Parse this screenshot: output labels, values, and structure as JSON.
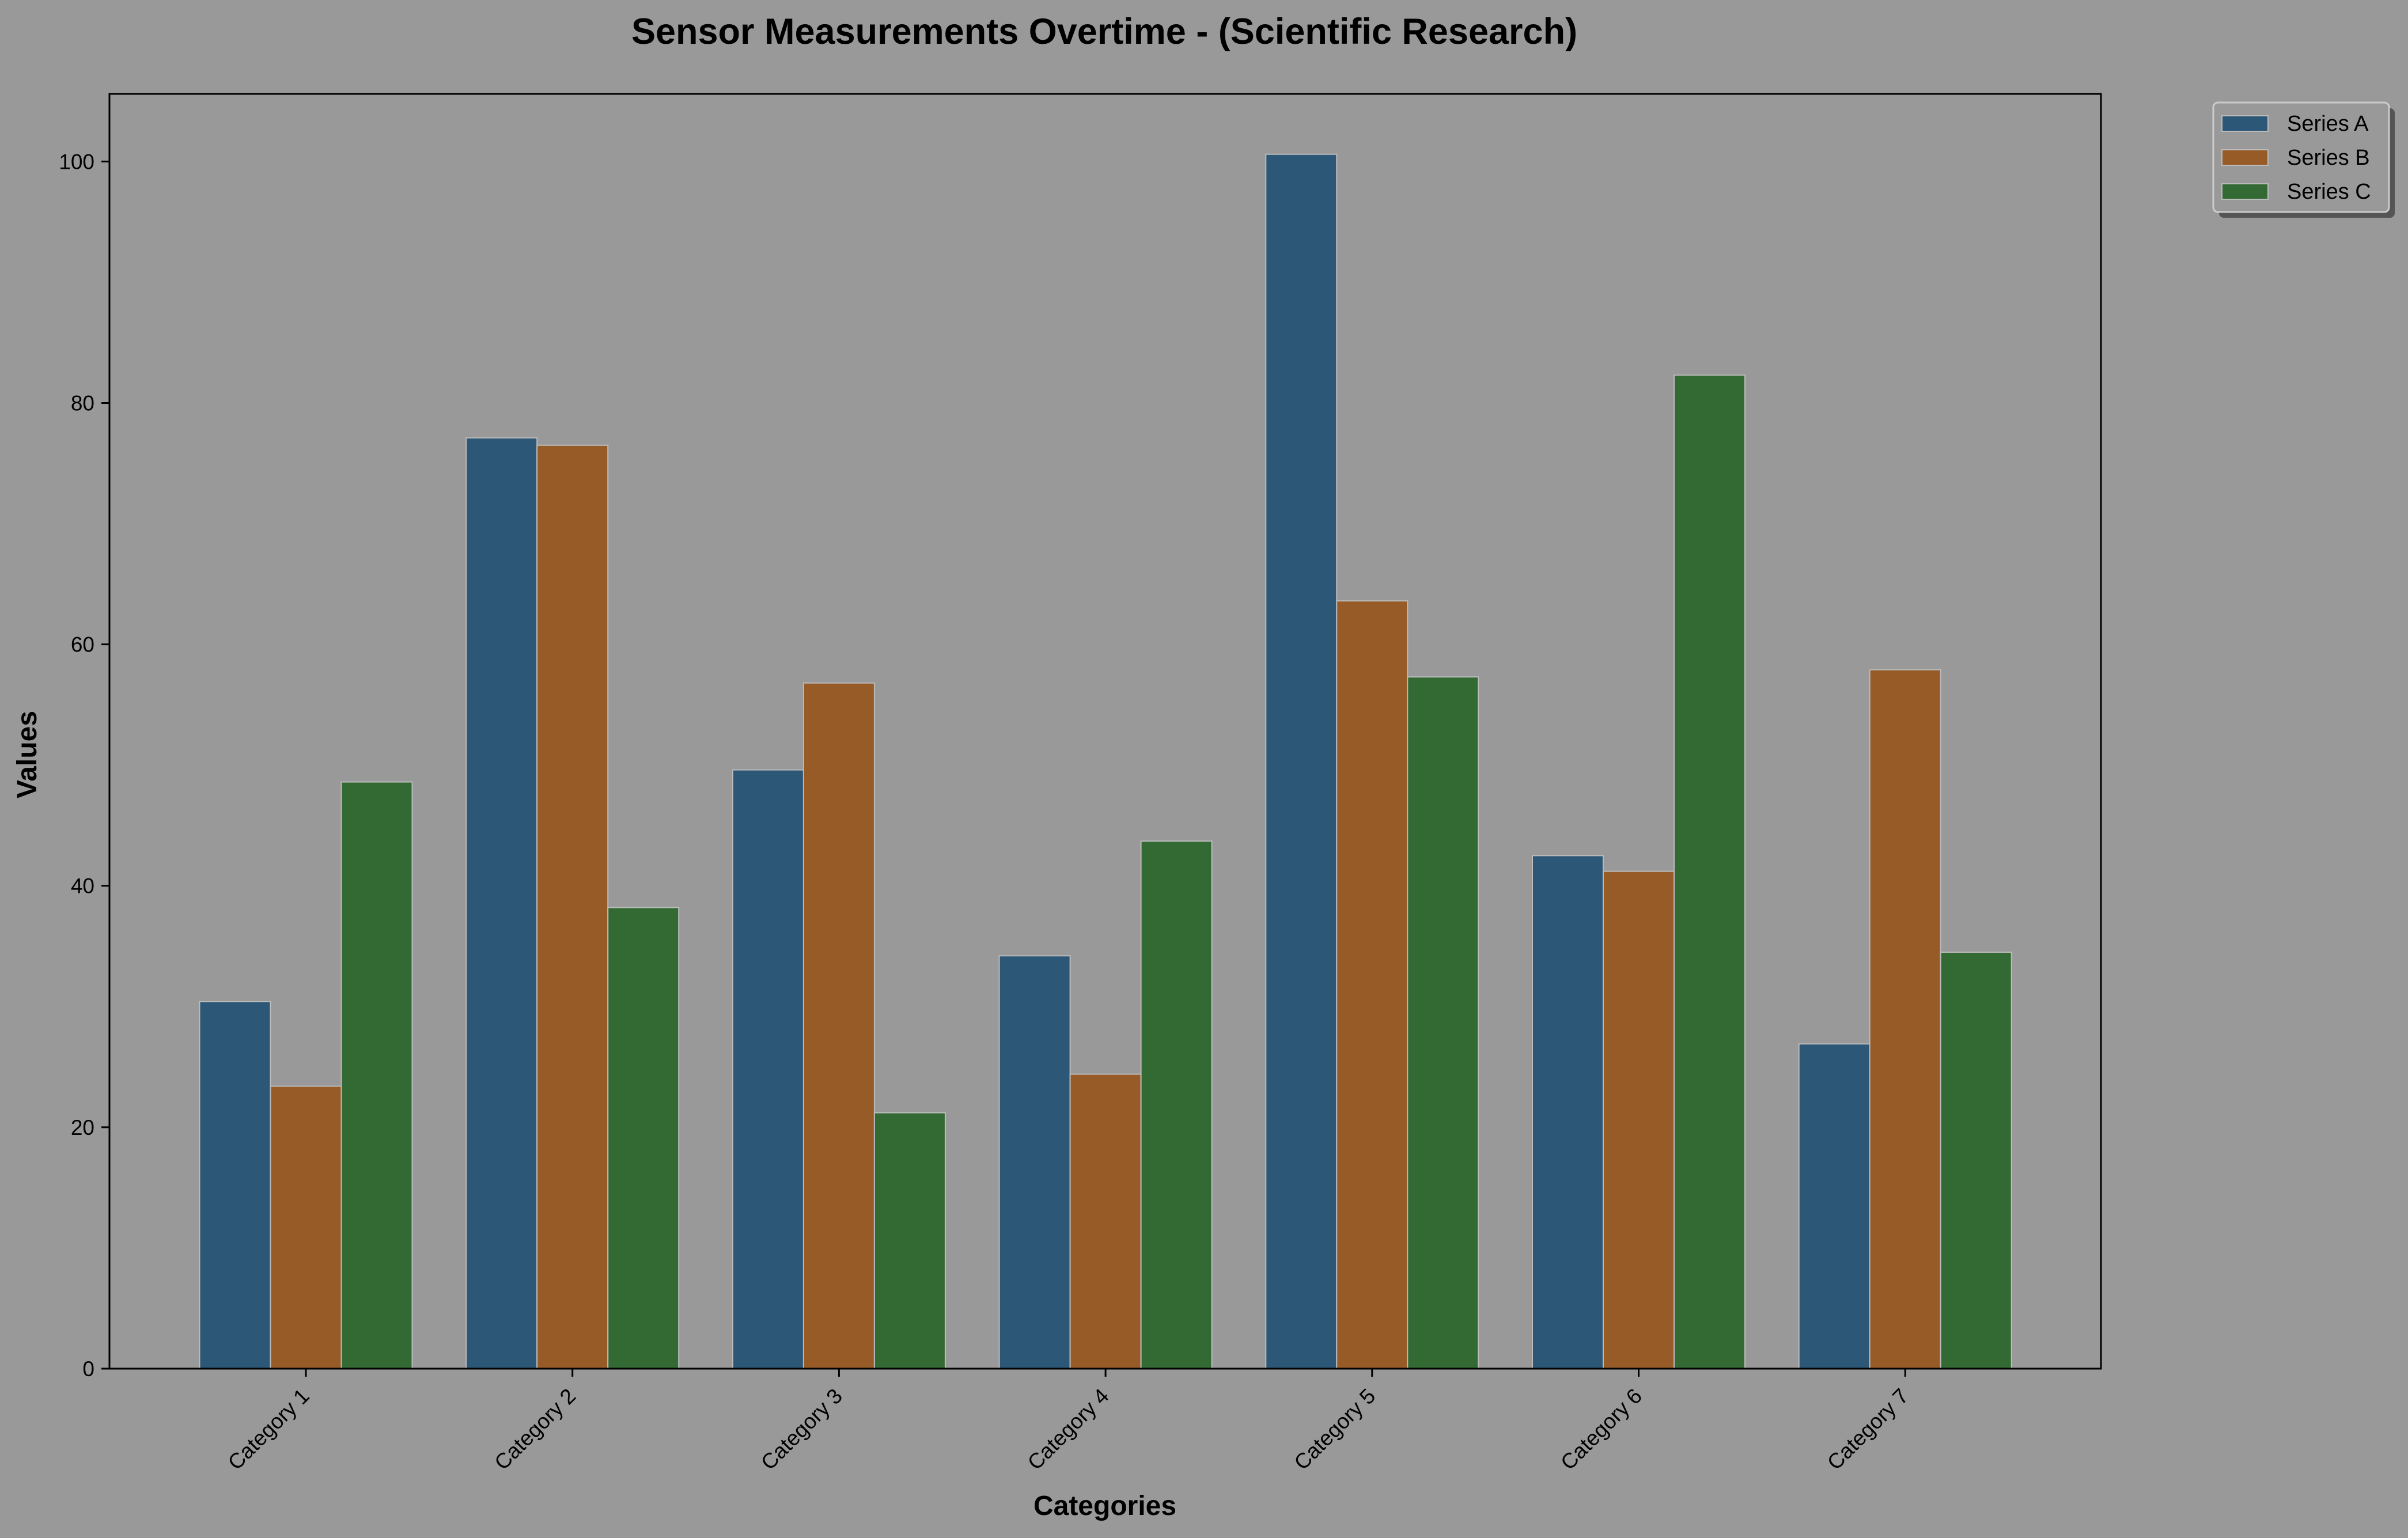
{
  "chart_data": {
    "type": "bar",
    "title": "Sensor Measurements Overtime - (Scientific Research)",
    "xlabel": "Categories",
    "ylabel": "Values",
    "categories": [
      "Category 1",
      "Category 2",
      "Category 3",
      "Category 4",
      "Category 5",
      "Category 6",
      "Category 7"
    ],
    "series": [
      {
        "name": "Series A",
        "color": "#2d5777",
        "values": [
          30.4,
          77.1,
          49.6,
          34.2,
          100.6,
          42.5,
          26.9
        ]
      },
      {
        "name": "Series B",
        "color": "#975b28",
        "values": [
          23.4,
          76.5,
          56.8,
          24.4,
          63.6,
          41.2,
          57.9
        ]
      },
      {
        "name": "Series C",
        "color": "#336a33",
        "values": [
          48.6,
          38.2,
          21.2,
          43.7,
          57.3,
          82.3,
          34.5
        ]
      }
    ],
    "ylim": [
      0,
      105.6
    ],
    "yticks": [
      0,
      20,
      40,
      60,
      80,
      100
    ],
    "grid": false,
    "legend_position": "outside top-right",
    "background_color": "#999999",
    "bar_edge_color": "#bbbbbb"
  }
}
